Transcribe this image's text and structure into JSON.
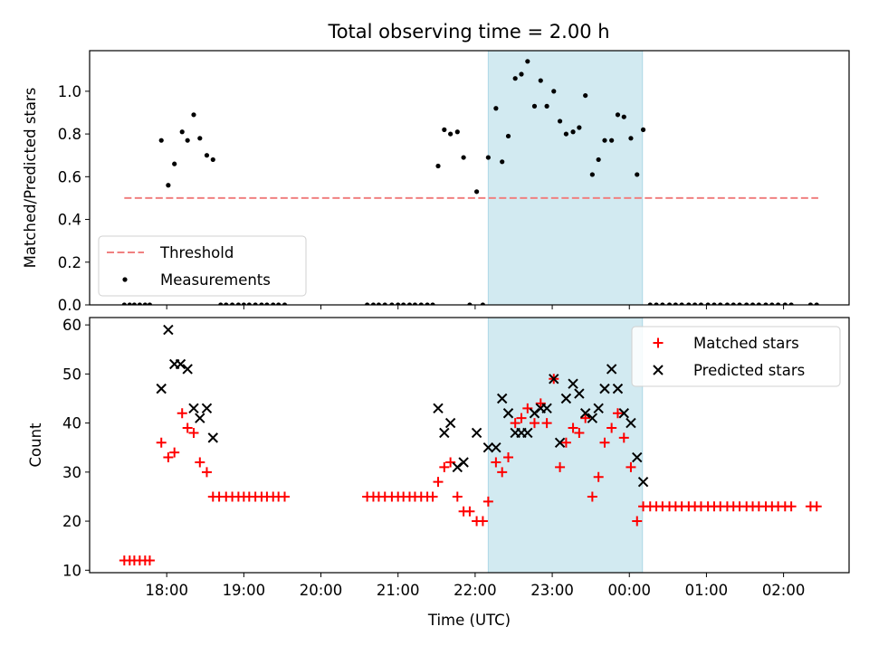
{
  "title": "Total observing time = 2.00 h",
  "colors": {
    "threshold": "#f08080",
    "measurements": "#000000",
    "matched": "#ff0000",
    "predicted": "#000000",
    "span": "#add8e6"
  },
  "chart_data": [
    {
      "type": "scatter",
      "ylabel": "Matched/Predicted stars",
      "ylim": [
        0,
        1.19
      ],
      "yticks": [
        "0.0",
        "0.2",
        "0.4",
        "0.6",
        "0.8",
        "1.0"
      ],
      "xlim_hours": [
        17.0,
        26.85
      ],
      "highlight_span_hours": [
        22.17,
        24.17
      ],
      "legend": {
        "placement": "lower-left",
        "entries": [
          "Threshold",
          "Measurements"
        ]
      },
      "series": [
        {
          "name": "Threshold",
          "style": "dashed-line",
          "points": [
            [
              17.45,
              0.5
            ],
            [
              26.45,
              0.5
            ]
          ]
        },
        {
          "name": "Measurements",
          "style": "dot",
          "points": [
            [
              17.45,
              0
            ],
            [
              17.52,
              0
            ],
            [
              17.58,
              0
            ],
            [
              17.65,
              0
            ],
            [
              17.72,
              0
            ],
            [
              17.78,
              0
            ],
            [
              17.93,
              0.77
            ],
            [
              18.02,
              0.56
            ],
            [
              18.1,
              0.66
            ],
            [
              18.2,
              0.81
            ],
            [
              18.27,
              0.77
            ],
            [
              18.35,
              0.89
            ],
            [
              18.43,
              0.78
            ],
            [
              18.52,
              0.7
            ],
            [
              18.6,
              0.68
            ],
            [
              18.7,
              0
            ],
            [
              18.77,
              0
            ],
            [
              18.85,
              0
            ],
            [
              18.93,
              0
            ],
            [
              19.0,
              0
            ],
            [
              19.07,
              0
            ],
            [
              19.15,
              0
            ],
            [
              19.23,
              0
            ],
            [
              19.3,
              0
            ],
            [
              19.38,
              0
            ],
            [
              19.45,
              0
            ],
            [
              19.53,
              0
            ],
            [
              20.6,
              0
            ],
            [
              20.68,
              0
            ],
            [
              20.75,
              0
            ],
            [
              20.83,
              0
            ],
            [
              20.92,
              0
            ],
            [
              21.0,
              0
            ],
            [
              21.07,
              0
            ],
            [
              21.15,
              0
            ],
            [
              21.22,
              0
            ],
            [
              21.3,
              0
            ],
            [
              21.38,
              0
            ],
            [
              21.45,
              0
            ],
            [
              21.52,
              0.65
            ],
            [
              21.6,
              0.82
            ],
            [
              21.68,
              0.8
            ],
            [
              21.77,
              0.81
            ],
            [
              21.85,
              0.69
            ],
            [
              21.93,
              0
            ],
            [
              22.02,
              0.53
            ],
            [
              22.1,
              0
            ],
            [
              22.17,
              0.69
            ],
            [
              22.27,
              0.92
            ],
            [
              22.35,
              0.67
            ],
            [
              22.43,
              0.79
            ],
            [
              22.52,
              1.06
            ],
            [
              22.6,
              1.08
            ],
            [
              22.68,
              1.14
            ],
            [
              22.77,
              0.93
            ],
            [
              22.85,
              1.05
            ],
            [
              22.93,
              0.93
            ],
            [
              23.02,
              1.0
            ],
            [
              23.1,
              0.86
            ],
            [
              23.18,
              0.8
            ],
            [
              23.27,
              0.81
            ],
            [
              23.35,
              0.83
            ],
            [
              23.43,
              0.98
            ],
            [
              23.52,
              0.61
            ],
            [
              23.6,
              0.68
            ],
            [
              23.68,
              0.77
            ],
            [
              23.77,
              0.77
            ],
            [
              23.85,
              0.89
            ],
            [
              23.93,
              0.88
            ],
            [
              24.02,
              0.78
            ],
            [
              24.1,
              0.61
            ],
            [
              24.18,
              0.82
            ],
            [
              24.27,
              0
            ],
            [
              24.35,
              0
            ],
            [
              24.43,
              0
            ],
            [
              24.52,
              0
            ],
            [
              24.6,
              0
            ],
            [
              24.68,
              0
            ],
            [
              24.77,
              0
            ],
            [
              24.85,
              0
            ],
            [
              24.93,
              0
            ],
            [
              25.02,
              0
            ],
            [
              25.1,
              0
            ],
            [
              25.18,
              0
            ],
            [
              25.27,
              0
            ],
            [
              25.35,
              0
            ],
            [
              25.43,
              0
            ],
            [
              25.52,
              0
            ],
            [
              25.6,
              0
            ],
            [
              25.68,
              0
            ],
            [
              25.77,
              0
            ],
            [
              25.85,
              0
            ],
            [
              25.93,
              0
            ],
            [
              26.02,
              0
            ],
            [
              26.1,
              0
            ],
            [
              26.35,
              0
            ],
            [
              26.43,
              0
            ]
          ]
        }
      ]
    },
    {
      "type": "scatter",
      "xlabel": "Time (UTC)",
      "ylabel": "Count",
      "ylim": [
        9.5,
        61.5
      ],
      "yticks": [
        "10",
        "20",
        "30",
        "40",
        "50",
        "60"
      ],
      "xlim_hours": [
        17.0,
        26.85
      ],
      "xticks": [
        {
          "label": "18:00",
          "hour": 18
        },
        {
          "label": "19:00",
          "hour": 19
        },
        {
          "label": "20:00",
          "hour": 20
        },
        {
          "label": "21:00",
          "hour": 21
        },
        {
          "label": "22:00",
          "hour": 22
        },
        {
          "label": "23:00",
          "hour": 23
        },
        {
          "label": "00:00",
          "hour": 24
        },
        {
          "label": "01:00",
          "hour": 25
        },
        {
          "label": "02:00",
          "hour": 26
        }
      ],
      "highlight_span_hours": [
        22.17,
        24.17
      ],
      "legend": {
        "placement": "upper-right",
        "entries": [
          "Matched stars",
          "Predicted stars"
        ]
      },
      "series": [
        {
          "name": "Matched stars",
          "style": "plus",
          "points": [
            [
              17.45,
              12
            ],
            [
              17.52,
              12
            ],
            [
              17.58,
              12
            ],
            [
              17.65,
              12
            ],
            [
              17.72,
              12
            ],
            [
              17.78,
              12
            ],
            [
              17.93,
              36
            ],
            [
              18.02,
              33
            ],
            [
              18.1,
              34
            ],
            [
              18.2,
              42
            ],
            [
              18.27,
              39
            ],
            [
              18.35,
              38
            ],
            [
              18.43,
              32
            ],
            [
              18.52,
              30
            ],
            [
              18.6,
              25
            ],
            [
              18.68,
              25
            ],
            [
              18.77,
              25
            ],
            [
              18.85,
              25
            ],
            [
              18.93,
              25
            ],
            [
              19.0,
              25
            ],
            [
              19.07,
              25
            ],
            [
              19.15,
              25
            ],
            [
              19.23,
              25
            ],
            [
              19.3,
              25
            ],
            [
              19.38,
              25
            ],
            [
              19.45,
              25
            ],
            [
              19.53,
              25
            ],
            [
              20.6,
              25
            ],
            [
              20.68,
              25
            ],
            [
              20.75,
              25
            ],
            [
              20.83,
              25
            ],
            [
              20.92,
              25
            ],
            [
              21.0,
              25
            ],
            [
              21.07,
              25
            ],
            [
              21.15,
              25
            ],
            [
              21.22,
              25
            ],
            [
              21.3,
              25
            ],
            [
              21.38,
              25
            ],
            [
              21.45,
              25
            ],
            [
              21.52,
              28
            ],
            [
              21.6,
              31
            ],
            [
              21.68,
              32
            ],
            [
              21.77,
              25
            ],
            [
              21.85,
              22
            ],
            [
              21.93,
              22
            ],
            [
              22.02,
              20
            ],
            [
              22.1,
              20
            ],
            [
              22.17,
              24
            ],
            [
              22.27,
              32
            ],
            [
              22.35,
              30
            ],
            [
              22.43,
              33
            ],
            [
              22.52,
              40
            ],
            [
              22.6,
              41
            ],
            [
              22.68,
              43
            ],
            [
              22.77,
              40
            ],
            [
              22.85,
              44
            ],
            [
              22.93,
              40
            ],
            [
              23.02,
              49
            ],
            [
              23.1,
              31
            ],
            [
              23.18,
              36
            ],
            [
              23.27,
              39
            ],
            [
              23.35,
              38
            ],
            [
              23.43,
              41
            ],
            [
              23.52,
              25
            ],
            [
              23.6,
              29
            ],
            [
              23.68,
              36
            ],
            [
              23.77,
              39
            ],
            [
              23.85,
              42
            ],
            [
              23.93,
              37
            ],
            [
              24.02,
              31
            ],
            [
              24.1,
              20
            ],
            [
              24.18,
              23
            ],
            [
              24.27,
              23
            ],
            [
              24.35,
              23
            ],
            [
              24.43,
              23
            ],
            [
              24.52,
              23
            ],
            [
              24.6,
              23
            ],
            [
              24.68,
              23
            ],
            [
              24.77,
              23
            ],
            [
              24.85,
              23
            ],
            [
              24.93,
              23
            ],
            [
              25.02,
              23
            ],
            [
              25.1,
              23
            ],
            [
              25.18,
              23
            ],
            [
              25.27,
              23
            ],
            [
              25.35,
              23
            ],
            [
              25.43,
              23
            ],
            [
              25.52,
              23
            ],
            [
              25.6,
              23
            ],
            [
              25.68,
              23
            ],
            [
              25.77,
              23
            ],
            [
              25.85,
              23
            ],
            [
              25.93,
              23
            ],
            [
              26.02,
              23
            ],
            [
              26.1,
              23
            ],
            [
              26.35,
              23
            ],
            [
              26.43,
              23
            ]
          ]
        },
        {
          "name": "Predicted stars",
          "style": "x",
          "points": [
            [
              17.93,
              47
            ],
            [
              18.02,
              59
            ],
            [
              18.1,
              52
            ],
            [
              18.18,
              52
            ],
            [
              18.27,
              51
            ],
            [
              18.35,
              43
            ],
            [
              18.43,
              41
            ],
            [
              18.52,
              43
            ],
            [
              18.6,
              37
            ],
            [
              21.52,
              43
            ],
            [
              21.6,
              38
            ],
            [
              21.68,
              40
            ],
            [
              21.77,
              31
            ],
            [
              21.85,
              32
            ],
            [
              22.02,
              38
            ],
            [
              22.17,
              35
            ],
            [
              22.27,
              35
            ],
            [
              22.35,
              45
            ],
            [
              22.43,
              42
            ],
            [
              22.52,
              38
            ],
            [
              22.6,
              38
            ],
            [
              22.68,
              38
            ],
            [
              22.77,
              42
            ],
            [
              22.85,
              43
            ],
            [
              22.93,
              43
            ],
            [
              23.02,
              49
            ],
            [
              23.1,
              36
            ],
            [
              23.18,
              45
            ],
            [
              23.27,
              48
            ],
            [
              23.35,
              46
            ],
            [
              23.43,
              42
            ],
            [
              23.52,
              41
            ],
            [
              23.6,
              43
            ],
            [
              23.68,
              47
            ],
            [
              23.77,
              51
            ],
            [
              23.85,
              47
            ],
            [
              23.93,
              42
            ],
            [
              24.02,
              40
            ],
            [
              24.1,
              33
            ],
            [
              24.18,
              28
            ]
          ]
        }
      ]
    }
  ]
}
